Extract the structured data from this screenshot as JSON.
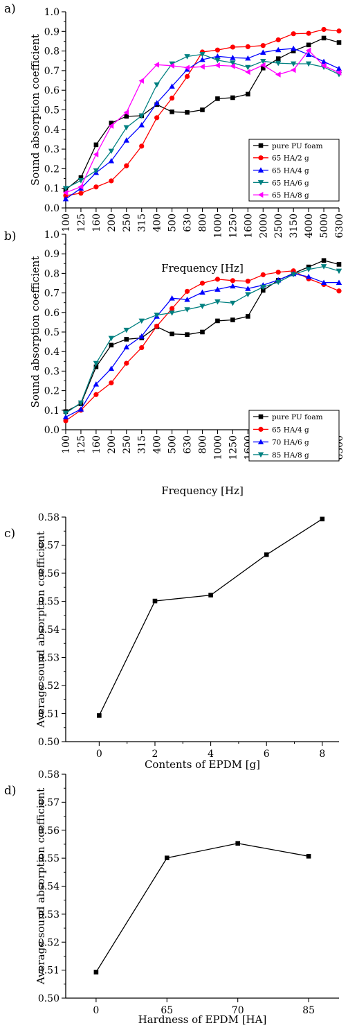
{
  "chart_data": [
    {
      "type": "line",
      "panel_label": "a)",
      "xlabel": "Frequency [Hz]",
      "ylabel": "Sound absorption coefficient",
      "categories": [
        "100",
        "125",
        "160",
        "200",
        "250",
        "315",
        "400",
        "500",
        "630",
        "800",
        "1000",
        "1250",
        "1600",
        "2000",
        "2500",
        "3150",
        "4000",
        "5000",
        "6300"
      ],
      "ylim": [
        0.0,
        1.0
      ],
      "yticks": [
        "0.0",
        "0.1",
        "0.2",
        "0.3",
        "0.4",
        "0.5",
        "0.6",
        "0.7",
        "0.8",
        "0.9",
        "1.0"
      ],
      "legend_position": "bottom-right",
      "series": [
        {
          "name": "pure PU foam",
          "color": "#000000",
          "marker": "square",
          "values": [
            0.093,
            0.155,
            0.322,
            0.433,
            0.467,
            0.47,
            0.527,
            0.49,
            0.487,
            0.5,
            0.557,
            0.562,
            0.58,
            0.713,
            0.761,
            0.8,
            0.831,
            0.866,
            0.843
          ]
        },
        {
          "name": "65 HA/2 g",
          "color": "#ff0000",
          "marker": "circle",
          "values": [
            0.063,
            0.075,
            0.107,
            0.138,
            0.215,
            0.315,
            0.46,
            0.56,
            0.67,
            0.795,
            0.805,
            0.82,
            0.822,
            0.828,
            0.857,
            0.888,
            0.89,
            0.91,
            0.902
          ]
        },
        {
          "name": "65 HA/4 g",
          "color": "#0000ff",
          "marker": "triangle-up",
          "values": [
            0.046,
            0.1,
            0.18,
            0.24,
            0.345,
            0.423,
            0.535,
            0.62,
            0.706,
            0.756,
            0.773,
            0.766,
            0.763,
            0.793,
            0.806,
            0.813,
            0.782,
            0.746,
            0.71
          ]
        },
        {
          "name": "65 HA/6 g",
          "color": "#008080",
          "marker": "triangle-down",
          "values": [
            0.1,
            0.14,
            0.19,
            0.29,
            0.41,
            0.47,
            0.628,
            0.735,
            0.772,
            0.783,
            0.753,
            0.74,
            0.717,
            0.748,
            0.738,
            0.735,
            0.735,
            0.718,
            0.681
          ]
        },
        {
          "name": "65 HA/8 g",
          "color": "#ff00ff",
          "marker": "triangle-left",
          "values": [
            0.078,
            0.108,
            0.273,
            0.418,
            0.487,
            0.648,
            0.73,
            0.725,
            0.715,
            0.72,
            0.727,
            0.723,
            0.693,
            0.728,
            0.68,
            0.703,
            0.803,
            0.725,
            0.69
          ]
        }
      ]
    },
    {
      "type": "line",
      "panel_label": "b)",
      "xlabel": "Frequency [Hz]",
      "ylabel": "Sound absorption coefficient",
      "categories": [
        "100",
        "125",
        "160",
        "200",
        "250",
        "315",
        "400",
        "500",
        "630",
        "800",
        "1000",
        "1250",
        "1600",
        "2000",
        "2500",
        "3150",
        "4000",
        "5000",
        "6300"
      ],
      "ylim": [
        0.0,
        1.0
      ],
      "yticks": [
        "0.0",
        "0.1",
        "0.2",
        "0.3",
        "0.4",
        "0.5",
        "0.6",
        "0.7",
        "0.8",
        "0.9",
        "1.0"
      ],
      "legend_position": "bottom-right",
      "series": [
        {
          "name": "pure PU foam",
          "color": "#000000",
          "marker": "square",
          "values": [
            0.093,
            0.133,
            0.322,
            0.433,
            0.463,
            0.47,
            0.527,
            0.49,
            0.487,
            0.5,
            0.557,
            0.562,
            0.58,
            0.713,
            0.765,
            0.8,
            0.833,
            0.866,
            0.846
          ]
        },
        {
          "name": "65 HA/4 g",
          "color": "#ff0000",
          "marker": "circle",
          "values": [
            0.046,
            0.1,
            0.18,
            0.24,
            0.34,
            0.42,
            0.53,
            0.62,
            0.708,
            0.75,
            0.77,
            0.763,
            0.76,
            0.793,
            0.806,
            0.813,
            0.772,
            0.743,
            0.71
          ]
        },
        {
          "name": "70 HA/6 g",
          "color": "#0000ff",
          "marker": "triangle-up",
          "values": [
            0.065,
            0.105,
            0.233,
            0.313,
            0.423,
            0.478,
            0.58,
            0.673,
            0.666,
            0.703,
            0.718,
            0.735,
            0.722,
            0.74,
            0.766,
            0.798,
            0.783,
            0.753,
            0.753
          ]
        },
        {
          "name": "85 HA/8 g",
          "color": "#008080",
          "marker": "triangle-down",
          "values": [
            0.085,
            0.138,
            0.34,
            0.468,
            0.51,
            0.557,
            0.587,
            0.598,
            0.615,
            0.632,
            0.655,
            0.648,
            0.692,
            0.73,
            0.755,
            0.795,
            0.82,
            0.835,
            0.812
          ]
        }
      ]
    },
    {
      "type": "line",
      "panel_label": "c)",
      "xlabel": "Contents of EPDM [g]",
      "ylabel": "Average sound absorption coefficient",
      "x": [
        0,
        2,
        4,
        6,
        8
      ],
      "xlim": [
        -1.2,
        8.6
      ],
      "xticks": [
        "0",
        "2",
        "4",
        "6",
        "8"
      ],
      "ylim": [
        0.5,
        0.58
      ],
      "yticks": [
        "0.50",
        "0.51",
        "0.52",
        "0.53",
        "0.54",
        "0.55",
        "0.56",
        "0.57",
        "0.58"
      ],
      "series": [
        {
          "name": "",
          "color": "#000000",
          "marker": "square",
          "values": [
            0.5093,
            0.5501,
            0.5522,
            0.5666,
            0.5793
          ]
        }
      ]
    },
    {
      "type": "line",
      "panel_label": "d)",
      "xlabel": "Hardness of EPDM [HA]",
      "ylabel": "Average sound absorption coefficient",
      "categories": [
        "0",
        "65",
        "70",
        "85"
      ],
      "ylim": [
        0.5,
        0.58
      ],
      "yticks": [
        "0.50",
        "0.51",
        "0.52",
        "0.53",
        "0.54",
        "0.55",
        "0.56",
        "0.57",
        "0.58"
      ],
      "series": [
        {
          "name": "",
          "color": "#000000",
          "marker": "square",
          "values": [
            0.5093,
            0.5501,
            0.5553,
            0.5507
          ]
        }
      ]
    }
  ]
}
